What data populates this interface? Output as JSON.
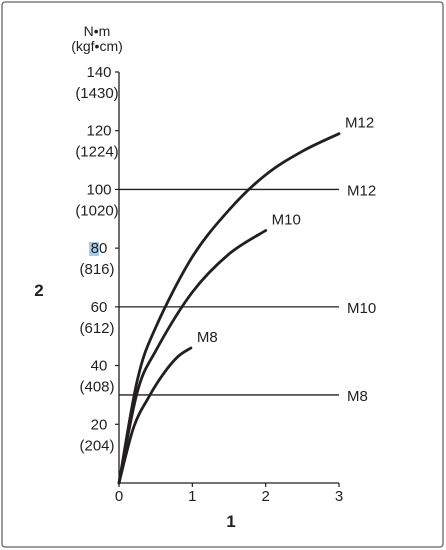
{
  "chart_data": {
    "type": "line",
    "unit_label": [
      "N•m",
      "(kgf•cm)"
    ],
    "x_axis_marker": "1",
    "y_axis_marker": "2",
    "xlim": [
      0,
      3
    ],
    "ylim": [
      0,
      140
    ],
    "x_ticks": [
      {
        "value": 0,
        "label": "0"
      },
      {
        "value": 1,
        "label": "1"
      },
      {
        "value": 2,
        "label": "2"
      },
      {
        "value": 3,
        "label": "3"
      }
    ],
    "y_ticks": [
      {
        "value": 20,
        "label": "20",
        "sub": "(204)"
      },
      {
        "value": 40,
        "label": "40",
        "sub": "(408)"
      },
      {
        "value": 60,
        "label": "60",
        "sub": "(612)"
      },
      {
        "value": 80,
        "label": "80",
        "sub": "(816)"
      },
      {
        "value": 100,
        "label": "100",
        "sub": "(1020)"
      },
      {
        "value": 120,
        "label": "120",
        "sub": "(1224)"
      },
      {
        "value": 140,
        "label": "140",
        "sub": "(1430)"
      }
    ],
    "curves": [
      {
        "label": "M12",
        "x": [
          0,
          0.25,
          0.5,
          1.0,
          1.5,
          2.0,
          2.5,
          3.0
        ],
        "y": [
          0,
          35,
          53,
          77,
          93,
          105,
          113,
          119
        ]
      },
      {
        "label": "M10",
        "x": [
          0,
          0.25,
          0.5,
          1.0,
          1.5,
          2.0
        ],
        "y": [
          0,
          31,
          45,
          65,
          78,
          86
        ]
      },
      {
        "label": "M8",
        "x": [
          0,
          0.2,
          0.4,
          0.6,
          0.8,
          0.98
        ],
        "y": [
          0,
          19,
          29,
          37,
          43,
          46
        ]
      }
    ],
    "thresholds": [
      {
        "label": "M12",
        "value": 100
      },
      {
        "label": "M10",
        "value": 60
      },
      {
        "label": "M8",
        "value": 30
      }
    ]
  }
}
